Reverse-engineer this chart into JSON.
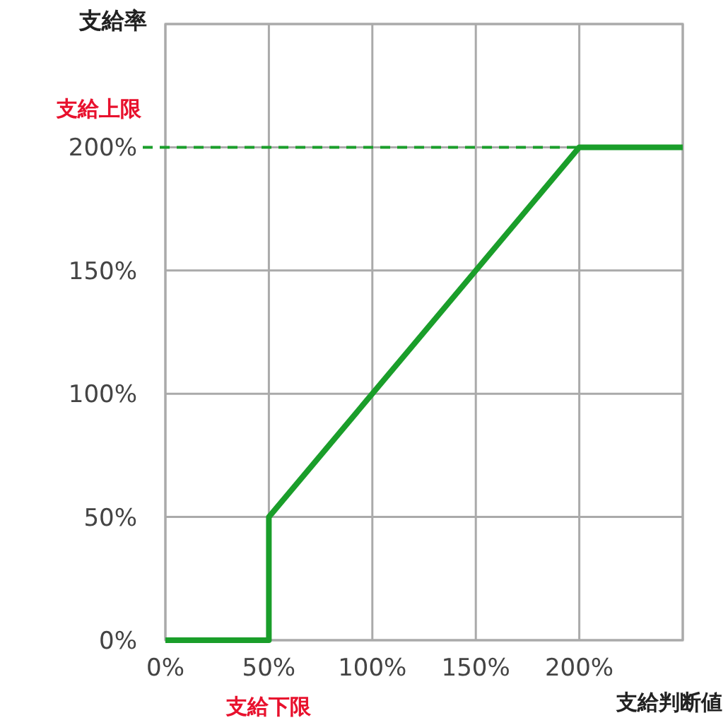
{
  "chart_data": {
    "type": "line",
    "ylabel": "支給率",
    "xlabel": "支給判断値",
    "x": [
      0,
      50,
      50,
      200,
      250
    ],
    "series": [
      {
        "color": "#1a9e2a",
        "values": [
          0,
          0,
          50,
          200,
          200
        ]
      }
    ],
    "xlim": [
      0,
      250
    ],
    "ylim": [
      0,
      250
    ],
    "xticks": [
      {
        "value": 0,
        "label": "0%"
      },
      {
        "value": 50,
        "label": "50%"
      },
      {
        "value": 100,
        "label": "100%"
      },
      {
        "value": 150,
        "label": "150%"
      },
      {
        "value": 200,
        "label": "200%"
      },
      {
        "value": 250,
        "label": null
      }
    ],
    "yticks": [
      {
        "value": 0,
        "label": "0%"
      },
      {
        "value": 50,
        "label": "50%"
      },
      {
        "value": 100,
        "label": "100%"
      },
      {
        "value": 150,
        "label": "150%"
      },
      {
        "value": 200,
        "label": "200%"
      },
      {
        "value": 250,
        "label": null
      }
    ],
    "grid": true,
    "marker": "none",
    "line_style": "solid",
    "ref_lines": [
      {
        "axis": "y",
        "value": 200,
        "label": "支給上限",
        "color": "#1a9e2a",
        "line_style": "dashed"
      }
    ],
    "annotations": [
      {
        "text": "支給下限",
        "x": 50,
        "y": 0
      }
    ]
  }
}
